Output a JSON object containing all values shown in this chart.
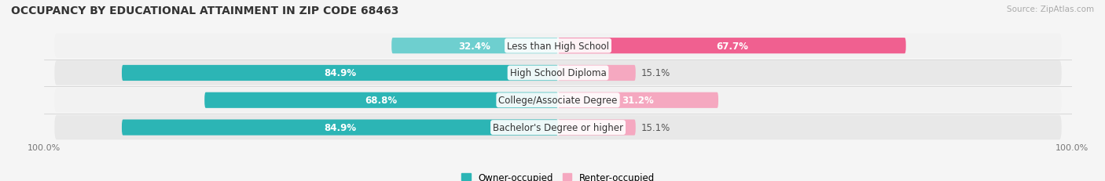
{
  "title": "OCCUPANCY BY EDUCATIONAL ATTAINMENT IN ZIP CODE 68463",
  "source": "Source: ZipAtlas.com",
  "categories": [
    "Less than High School",
    "High School Diploma",
    "College/Associate Degree",
    "Bachelor's Degree or higher"
  ],
  "owner_pct": [
    32.4,
    84.9,
    68.8,
    84.9
  ],
  "renter_pct": [
    67.7,
    15.1,
    31.2,
    15.1
  ],
  "owner_color_dark": "#2cb5b5",
  "owner_color_light": "#6ecfcf",
  "renter_color_dark": "#f06090",
  "renter_color_light": "#f5a8c0",
  "bg_color": "#f5f5f5",
  "row_bg_even": "#e8e8e8",
  "row_bg_odd": "#f2f2f2",
  "title_fontsize": 10,
  "label_fontsize": 8.5,
  "pct_fontsize": 8.5,
  "tick_fontsize": 8,
  "bar_height": 0.58,
  "xlim_left": -100,
  "xlim_right": 100
}
